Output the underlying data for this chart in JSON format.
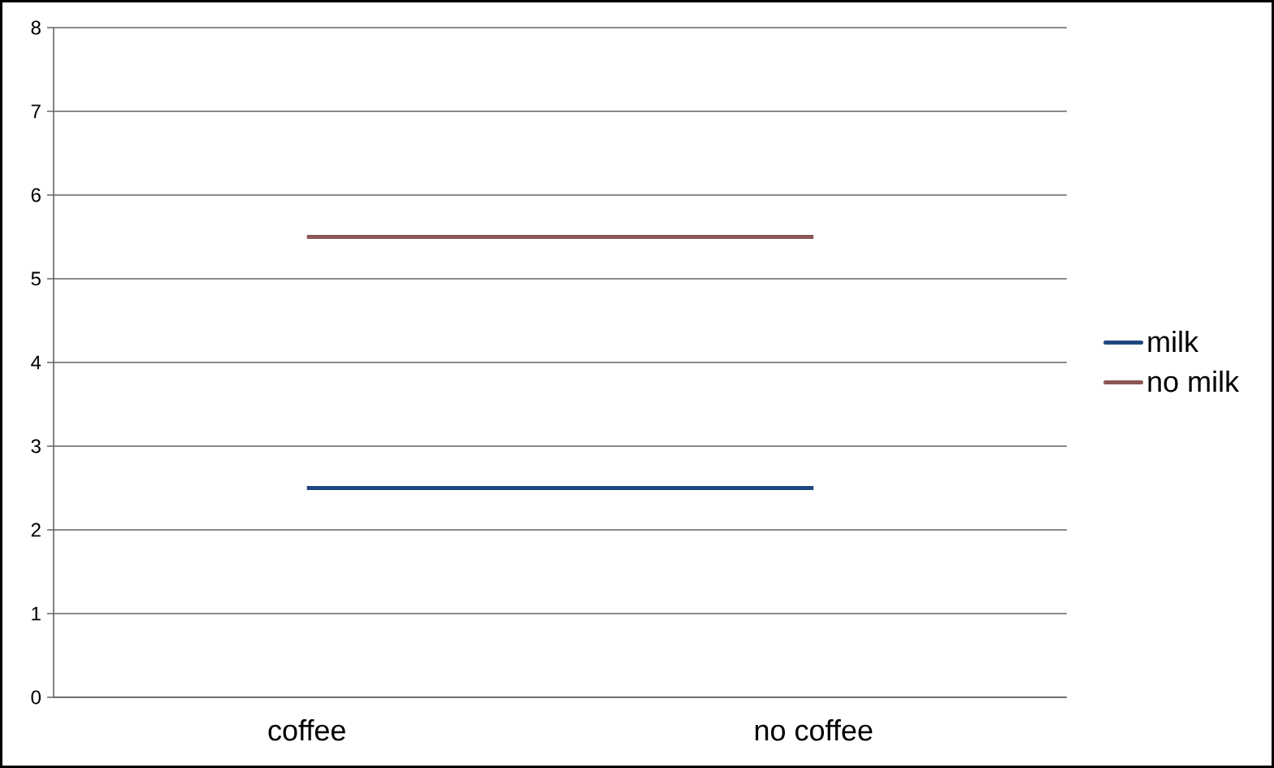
{
  "chart_data": {
    "type": "line",
    "categories": [
      "coffee",
      "no coffee"
    ],
    "series": [
      {
        "name": "milk",
        "color": "#1f497d",
        "values": [
          2.5,
          2.5
        ]
      },
      {
        "name": "no milk",
        "color": "#8c5656",
        "values": [
          5.5,
          5.5
        ]
      }
    ],
    "ylim": [
      0,
      8
    ],
    "yticks": [
      0,
      1,
      2,
      3,
      4,
      5,
      6,
      7,
      8
    ],
    "grid": "y",
    "legend": "right"
  }
}
